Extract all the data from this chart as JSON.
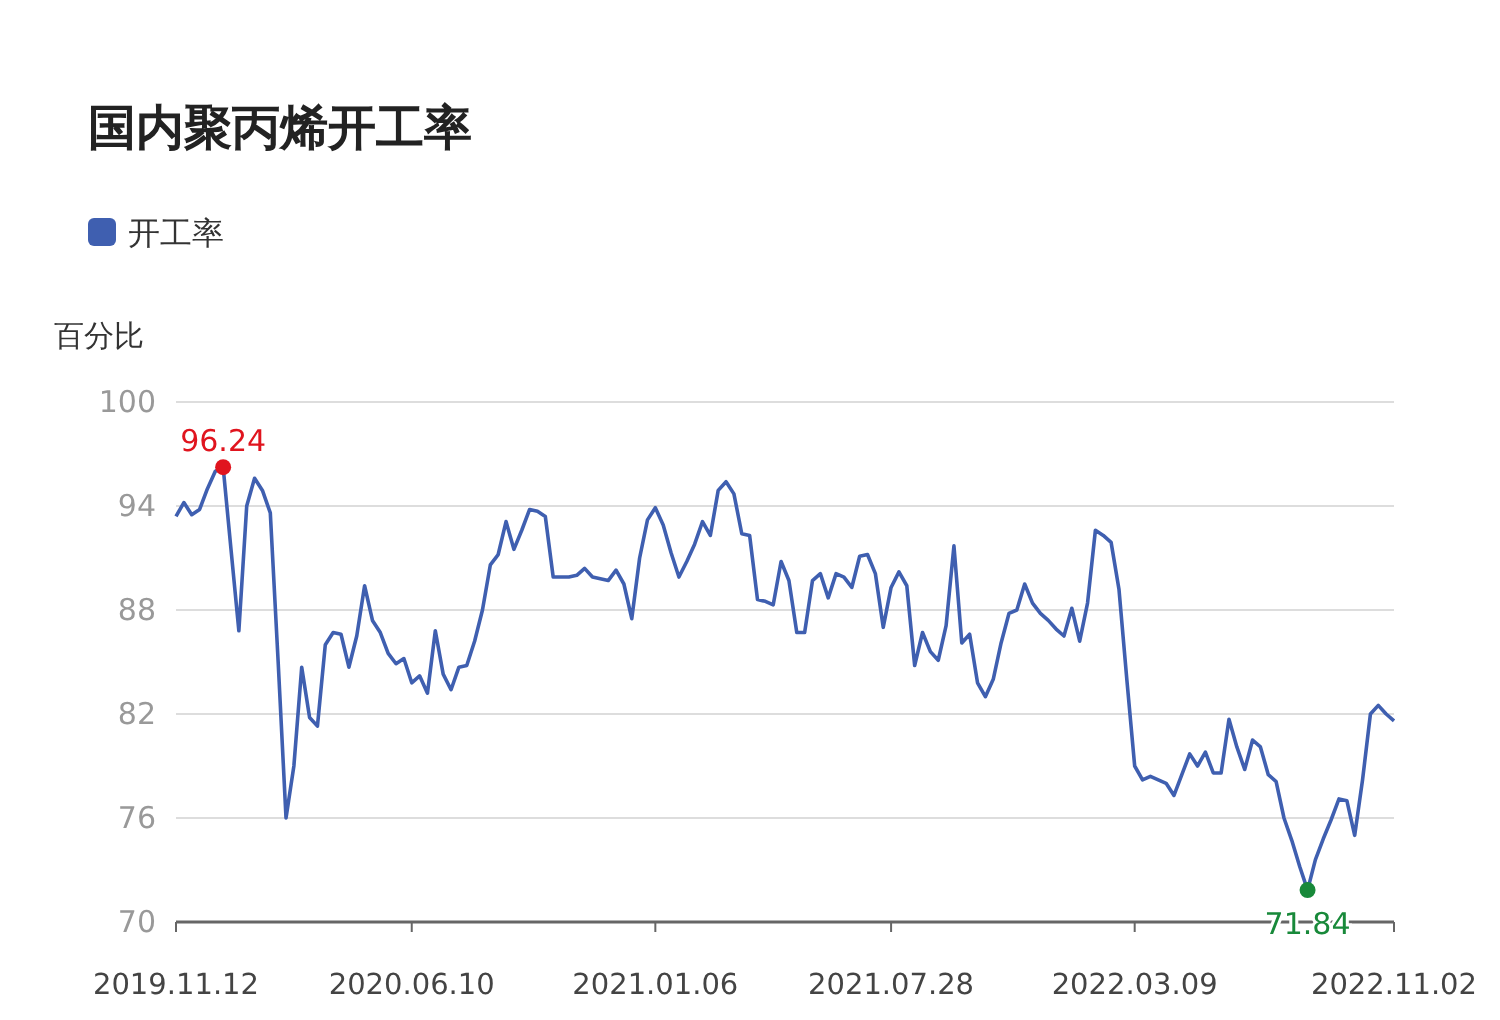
{
  "chart_data": {
    "type": "line",
    "title": "国内聚丙烯开工率",
    "ylabel": "百分比",
    "categories": [
      "2019.11.12",
      null,
      null,
      null,
      null,
      null,
      null,
      null,
      null,
      null,
      null,
      null,
      null,
      null,
      null,
      null,
      null,
      null,
      null,
      null,
      null,
      null,
      null,
      null,
      null,
      null,
      null,
      null,
      null,
      null,
      "2020.06.10",
      null,
      null,
      null,
      null,
      null,
      null,
      null,
      null,
      null,
      null,
      null,
      null,
      null,
      null,
      null,
      null,
      null,
      null,
      null,
      null,
      null,
      null,
      null,
      null,
      null,
      null,
      null,
      null,
      null,
      null,
      "2021.01.06",
      null,
      null,
      null,
      null,
      null,
      null,
      null,
      null,
      null,
      null,
      null,
      null,
      null,
      null,
      null,
      null,
      null,
      null,
      null,
      null,
      null,
      null,
      null,
      null,
      null,
      null,
      null,
      null,
      null,
      "2021.07.28",
      null,
      null,
      null,
      null,
      null,
      null,
      null,
      null,
      null,
      null,
      null,
      null,
      null,
      null,
      null,
      null,
      null,
      null,
      null,
      null,
      null,
      null,
      null,
      null,
      null,
      null,
      null,
      null,
      null,
      null,
      "2022.03.09",
      null,
      null,
      null,
      null,
      null,
      null,
      null,
      null,
      null,
      null,
      null,
      null,
      null,
      null,
      null,
      null,
      null,
      null,
      null,
      null,
      null,
      null,
      null,
      null,
      null,
      null,
      null,
      null,
      null,
      null,
      null,
      null,
      "2022.11.02"
    ],
    "series": [
      {
        "name": "开工率",
        "color": "#3f5fb0",
        "values": [
          93.4,
          94.2,
          93.5,
          93.8,
          95.0,
          96.0,
          96.24,
          91.5,
          86.8,
          94.0,
          95.6,
          94.9,
          93.6,
          85.0,
          76.0,
          79.0,
          84.7,
          81.8,
          81.3,
          86.0,
          86.7,
          86.6,
          84.7,
          86.5,
          89.4,
          87.4,
          86.7,
          85.5,
          84.9,
          85.2,
          83.8,
          84.2,
          83.2,
          86.8,
          84.3,
          83.4,
          84.7,
          84.8,
          86.2,
          88.0,
          90.6,
          91.2,
          93.1,
          91.5,
          92.6,
          93.8,
          93.7,
          93.4,
          89.9,
          89.9,
          89.9,
          90.0,
          90.4,
          89.9,
          89.8,
          89.7,
          90.3,
          89.5,
          87.5,
          91.0,
          93.2,
          93.9,
          92.9,
          91.3,
          89.9,
          90.8,
          91.8,
          93.1,
          92.3,
          94.9,
          95.4,
          94.7,
          92.4,
          92.3,
          88.6,
          88.5,
          88.3,
          90.8,
          89.7,
          86.7,
          86.7,
          89.7,
          90.1,
          88.7,
          90.1,
          89.9,
          89.3,
          91.1,
          91.2,
          90.1,
          87.0,
          89.3,
          90.2,
          89.4,
          84.8,
          86.7,
          85.6,
          85.1,
          87.1,
          91.7,
          86.1,
          86.6,
          83.8,
          83.0,
          84.0,
          86.1,
          87.8,
          88.0,
          89.5,
          88.4,
          87.8,
          87.4,
          86.9,
          86.5,
          88.1,
          86.2,
          88.4,
          92.6,
          92.3,
          91.9,
          89.2,
          84.0,
          79.0,
          78.2,
          78.4,
          78.2,
          78.0,
          77.3,
          78.5,
          79.7,
          79.0,
          79.8,
          78.6,
          78.6,
          81.7,
          80.1,
          78.8,
          80.5,
          80.1,
          78.5,
          78.1,
          76.0,
          74.7,
          73.2,
          71.84,
          73.6,
          74.8,
          75.9,
          77.1,
          77.0,
          75.0,
          78.2,
          82.0,
          82.5,
          82.0,
          81.6
        ],
        "value_labels": [
          null,
          null,
          null,
          null,
          null,
          null,
          "96.24",
          null,
          null,
          null,
          null,
          null,
          null,
          null,
          null,
          null,
          null,
          null,
          null,
          null,
          null,
          null,
          null,
          null,
          null,
          null,
          null,
          null,
          null,
          null,
          null,
          null,
          null,
          null,
          null,
          null,
          null,
          null,
          null,
          null,
          null,
          null,
          null,
          null,
          null,
          null,
          null,
          null,
          null,
          null,
          null,
          null,
          null,
          null,
          null,
          null,
          null,
          null,
          null,
          null,
          null,
          null,
          null,
          null,
          null,
          null,
          null,
          null,
          null,
          null,
          null,
          null,
          null,
          null,
          null,
          null,
          null,
          null,
          null,
          null,
          null,
          null,
          null,
          null,
          null,
          null,
          null,
          null,
          null,
          null,
          null,
          null,
          null,
          null,
          null,
          null,
          null,
          null,
          null,
          null,
          null,
          null,
          null,
          null,
          null,
          null,
          null,
          null,
          null,
          null,
          null,
          null,
          null,
          null,
          null,
          null,
          null,
          null,
          null,
          null,
          null,
          null,
          null,
          null,
          null,
          null,
          null,
          null,
          null,
          null,
          null,
          null,
          null,
          null,
          null,
          null,
          null,
          null,
          null,
          null,
          null,
          null,
          null,
          null,
          "71.84",
          null,
          null,
          null,
          null,
          null,
          null,
          null,
          null,
          null,
          null,
          null
        ]
      }
    ],
    "ylim": [
      70,
      100
    ],
    "yticks": [
      70,
      76,
      82,
      88,
      94,
      100
    ],
    "grid": "y",
    "legend": "top left",
    "marker": "none",
    "line_style": "solid"
  }
}
